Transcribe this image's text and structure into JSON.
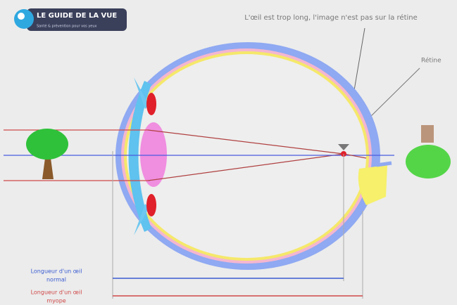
{
  "logo": {
    "title": "LE GUIDE DE LA VUE",
    "subtitle": "Santé & prévention pour vos yeux"
  },
  "annotations": {
    "caption": "L'œil est trop long, l'image n'est pas sur la rétine",
    "retina": "Rétine"
  },
  "legend": {
    "normal": [
      "Longueur d'un œil",
      "normal"
    ],
    "myopic": [
      "Longueur d'un œil",
      "myope"
    ]
  }
}
